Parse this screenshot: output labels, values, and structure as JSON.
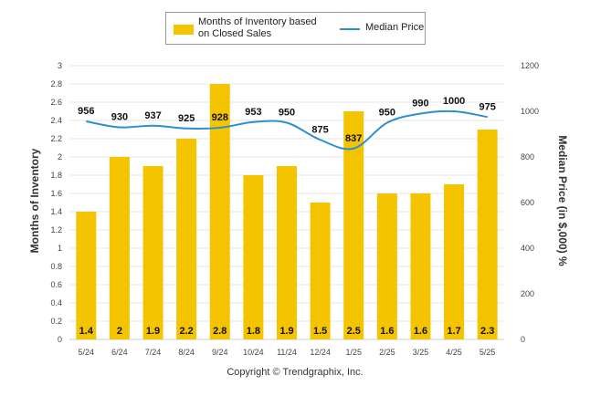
{
  "chart_data": {
    "type": "bar",
    "categories": [
      "5/24",
      "6/24",
      "7/24",
      "8/24",
      "9/24",
      "10/24",
      "11/24",
      "12/24",
      "1/25",
      "2/25",
      "3/25",
      "4/25",
      "5/25"
    ],
    "series": [
      {
        "name": "Months of Inventory based on Closed Sales",
        "type": "bar",
        "axis": "left",
        "values": [
          1.4,
          2,
          1.9,
          2.2,
          2.8,
          1.8,
          1.9,
          1.5,
          2.5,
          1.6,
          1.6,
          1.7,
          2.3
        ],
        "labels": [
          "1.4",
          "2",
          "1.9",
          "2.2",
          "2.8",
          "1.8",
          "1.9",
          "1.5",
          "2.5",
          "1.6",
          "1.6",
          "1.7",
          "2.3"
        ],
        "color": "#F5C400"
      },
      {
        "name": "Median Price",
        "type": "line",
        "axis": "right",
        "values": [
          956,
          930,
          937,
          925,
          928,
          953,
          950,
          875,
          837,
          950,
          990,
          1000,
          975
        ],
        "color": "#2E8FD0"
      }
    ],
    "ylabel": "Months of Inventory",
    "y2label": "Median Price (in $,000) %",
    "ylim": [
      0,
      3
    ],
    "y2lim": [
      0,
      1200
    ],
    "yticks": [
      "0",
      "0.2",
      "0.4",
      "0.6",
      "0.8",
      "1",
      "1.2",
      "1.4",
      "1.6",
      "1.8",
      "2",
      "2.2",
      "2.4",
      "2.6",
      "2.8",
      "3"
    ],
    "y2ticks": [
      "0",
      "200",
      "400",
      "600",
      "800",
      "1000",
      "1200"
    ],
    "grid": true,
    "legend_position": "top-center"
  },
  "legend": {
    "bar_label": "Months of Inventory based on Closed Sales",
    "line_label": "Median Price"
  },
  "footer": {
    "copyright": "Copyright © Trendgraphix, Inc."
  }
}
